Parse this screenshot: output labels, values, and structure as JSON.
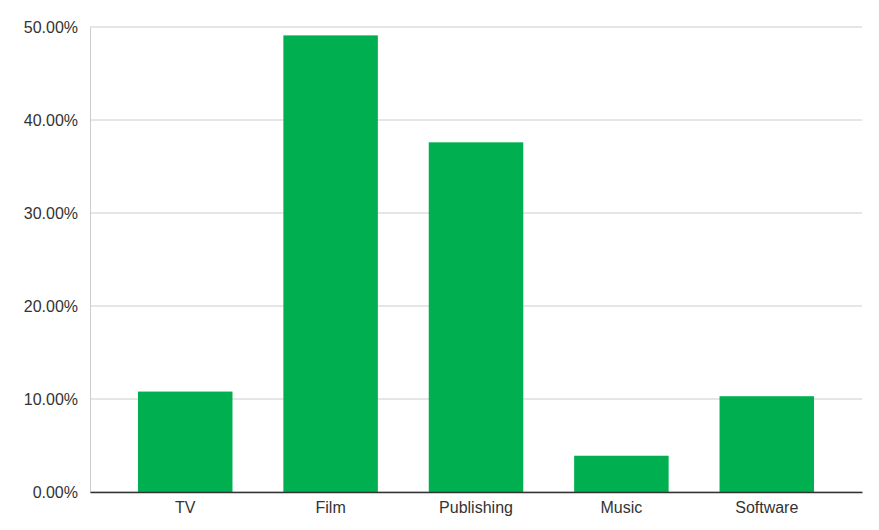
{
  "chart_data": {
    "type": "bar",
    "categories": [
      "TV",
      "Film",
      "Publishing",
      "Music",
      "Software"
    ],
    "values": [
      10.8,
      49.1,
      37.6,
      3.9,
      10.3
    ],
    "color": "#00b050",
    "ylim": [
      0,
      50
    ],
    "yticks": [
      {
        "value": 0,
        "label": "0.00%"
      },
      {
        "value": 10,
        "label": "10.00%"
      },
      {
        "value": 20,
        "label": "20.00%"
      },
      {
        "value": 30,
        "label": "30.00%"
      },
      {
        "value": 40,
        "label": "40.00%"
      },
      {
        "value": 50,
        "label": "50.00%"
      }
    ],
    "grid": true
  }
}
